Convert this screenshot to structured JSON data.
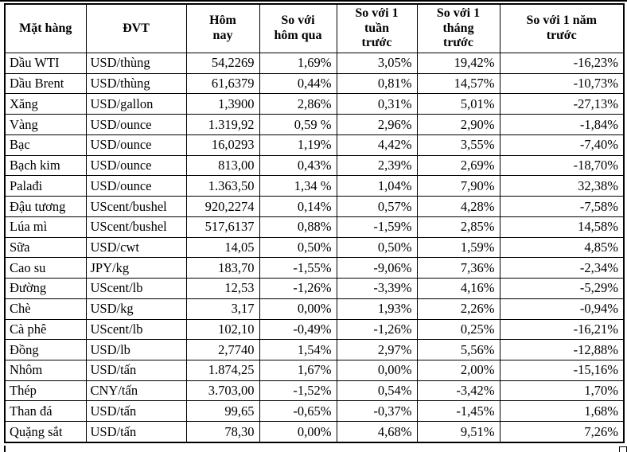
{
  "colors": {
    "background": "#ffffff",
    "border": "#000000",
    "text": "#000000"
  },
  "header_display": [
    "Mặt hàng",
    "ĐVT",
    "Hôm\nnay",
    "So với\nhôm qua",
    "So với 1\ntuần\ntrước",
    "So với 1\ntháng\ntrước",
    "So với 1 năm\ntrước"
  ],
  "chart_data": {
    "type": "table",
    "title": "",
    "columns": [
      "Mặt hàng",
      "ĐVT",
      "Hôm nay",
      "So với hôm qua",
      "So với 1 tuần trước",
      "So với 1 tháng trước",
      "So với 1 năm trước"
    ],
    "rows": [
      [
        "Dầu WTI",
        "USD/thùng",
        "54,2269",
        "1,69%",
        "3,05%",
        "19,42%",
        "-16,23%"
      ],
      [
        "Dầu Brent",
        "USD/thùng",
        "61,6379",
        "0,44%",
        "0,81%",
        "14,57%",
        "-10,73%"
      ],
      [
        "Xăng",
        "USD/gallon",
        "1,3900",
        "2,86%",
        "0,31%",
        "5,01%",
        "-27,13%"
      ],
      [
        "Vàng",
        "USD/ounce",
        "1.319,92",
        "0,59 %",
        "2,96%",
        "2,90%",
        "-1,84%"
      ],
      [
        "Bạc",
        "USD/ounce",
        "16,0293",
        "1,19%",
        "4,42%",
        "3,55%",
        "-7,40%"
      ],
      [
        "Bạch kim",
        "USD/ounce",
        "813,00",
        "0,43%",
        "2,39%",
        "2,69%",
        "-18,70%"
      ],
      [
        "Palađi",
        "USD/ounce",
        "1.363,50",
        "1,34 %",
        "1,04%",
        "7,90%",
        "32,38%"
      ],
      [
        "Đậu tương",
        "UScent/bushel",
        "920,2274",
        "0,14%",
        "0,57%",
        "4,28%",
        "-7,58%"
      ],
      [
        "Lúa mì",
        "UScent/bushel",
        "517,6137",
        "0,88%",
        "-1,59%",
        "2,85%",
        "14,58%"
      ],
      [
        "Sữa",
        "USD/cwt",
        "14,05",
        "0,50%",
        "0,50%",
        "1,59%",
        "4,85%"
      ],
      [
        "Cao su",
        "JPY/kg",
        "183,70",
        "-1,55%",
        "-9,06%",
        "7,36%",
        "-2,34%"
      ],
      [
        "Đường",
        "UScent/lb",
        "12,53",
        "-1,26%",
        "-3,39%",
        "4,16%",
        "-5,29%"
      ],
      [
        "Chè",
        "USD/kg",
        "3,17",
        "0,00%",
        "1,93%",
        "2,26%",
        "-0,94%"
      ],
      [
        "Cà phê",
        "UScent/lb",
        "102,10",
        "-0,49%",
        "-1,26%",
        "0,25%",
        "-16,21%"
      ],
      [
        "Đồng",
        "USD/lb",
        "2,7740",
        "1,54%",
        "2,97%",
        "5,56%",
        "-12,88%"
      ],
      [
        "Nhôm",
        "USD/tấn",
        "1.874,25",
        "1,67%",
        "0,00%",
        "2,00%",
        "-15,16%"
      ],
      [
        "Thép",
        "CNY/tấn",
        "3.703,00",
        "-1,52%",
        "0,54%",
        "-3,42%",
        "1,70%"
      ],
      [
        "Than đá",
        "USD/tấn",
        "99,65",
        "-0,65%",
        "-0,37%",
        "-1,45%",
        "1,68%"
      ],
      [
        "Quặng sắt",
        "USD/tấn",
        "78,30",
        "0,00%",
        "4,68%",
        "9,51%",
        "7,26%"
      ]
    ]
  }
}
